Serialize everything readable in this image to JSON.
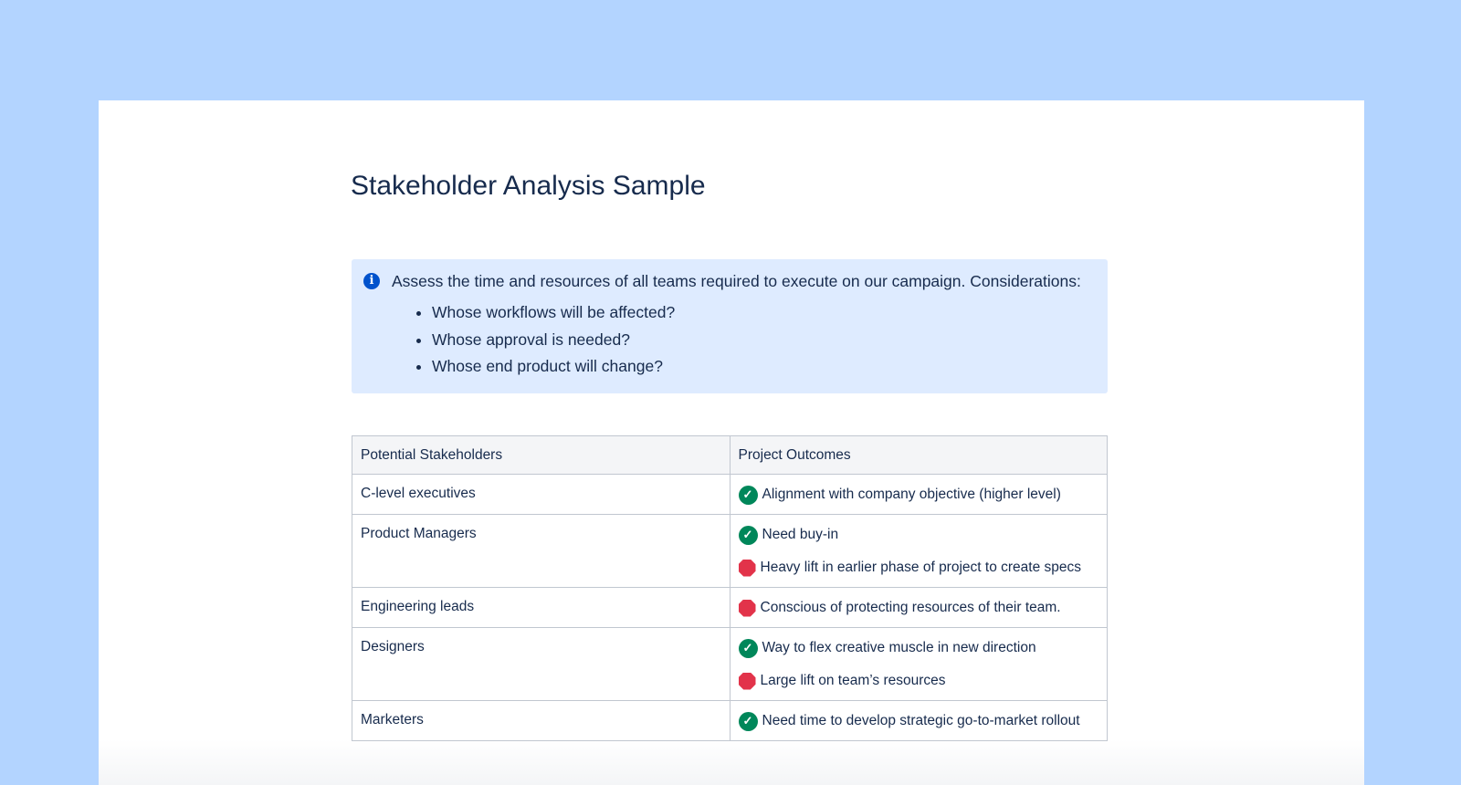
{
  "title": "Stakeholder Analysis Sample",
  "info": {
    "icon": "info-icon",
    "text": "Assess the time and resources of all teams required to execute on our campaign. Considerations:",
    "bullets": [
      "Whose workflows will be affected?",
      "Whose approval is needed?",
      "Whose end product will change?"
    ]
  },
  "table": {
    "headers": [
      "Potential Stakeholders",
      "Project Outcomes"
    ],
    "rows": [
      {
        "stakeholder": "C-level executives",
        "outcomes": [
          {
            "status": "check",
            "text": "Alignment with company objective (higher level)"
          }
        ]
      },
      {
        "stakeholder": "Product Managers",
        "outcomes": [
          {
            "status": "check",
            "text": "Need buy-in"
          },
          {
            "status": "stop",
            "text": "Heavy lift in earlier phase of project to create specs"
          }
        ]
      },
      {
        "stakeholder": "Engineering leads",
        "outcomes": [
          {
            "status": "stop",
            "text": "Conscious of protecting resources of their team."
          }
        ]
      },
      {
        "stakeholder": "Designers",
        "outcomes": [
          {
            "status": "check",
            "text": "Way to flex creative muscle in new direction"
          },
          {
            "status": "stop",
            "text": "Large lift on team’s resources"
          }
        ]
      },
      {
        "stakeholder": "Marketers",
        "outcomes": [
          {
            "status": "check",
            "text": "Need time to develop strategic go-to-market rollout"
          }
        ]
      }
    ]
  },
  "colors": {
    "background": "#b3d4ff",
    "info_panel": "#deebff",
    "check": "#00875a",
    "stop": "#e2334a",
    "text": "#172b4d"
  }
}
